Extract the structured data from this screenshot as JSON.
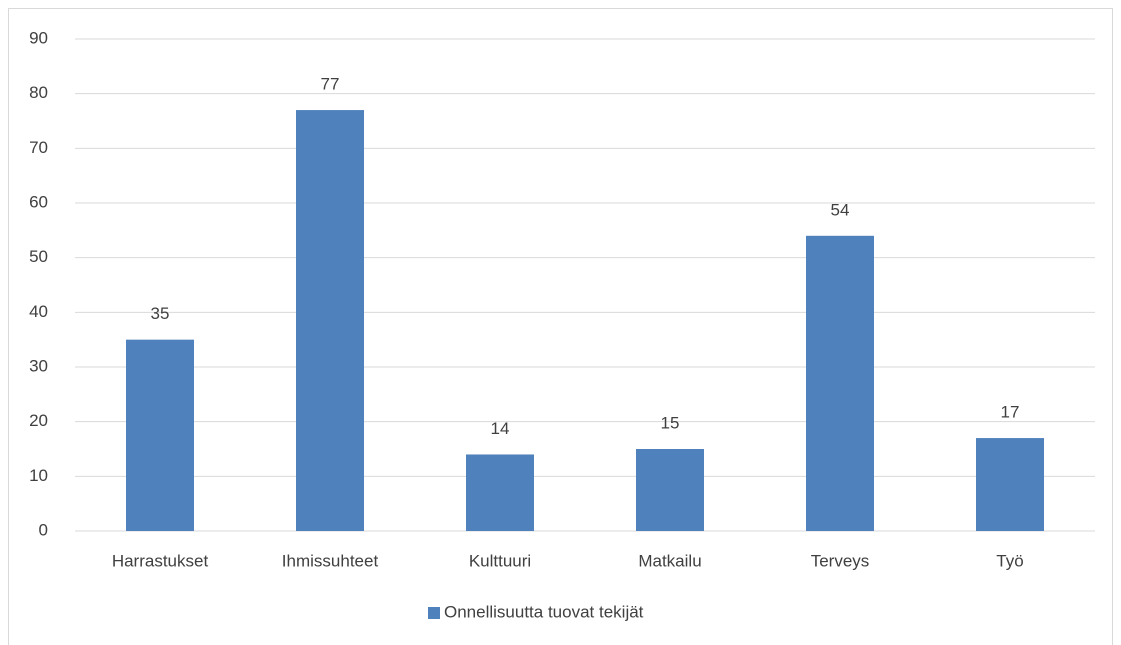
{
  "chart_data": {
    "type": "bar",
    "categories": [
      "Harrastukset",
      "Ihmissuhteet",
      "Kulttuuri",
      "Matkailu",
      "Terveys",
      "Työ"
    ],
    "series": [
      {
        "name": "Onnellisuutta tuovat tekijät",
        "color": "#4f81bd",
        "values": [
          35,
          77,
          14,
          15,
          54,
          17
        ]
      }
    ],
    "ylim": [
      0,
      90
    ],
    "yticks": [
      0,
      10,
      20,
      30,
      40,
      50,
      60,
      70,
      80,
      90
    ],
    "grid": true,
    "data_labels": true,
    "legend": "bottom"
  }
}
